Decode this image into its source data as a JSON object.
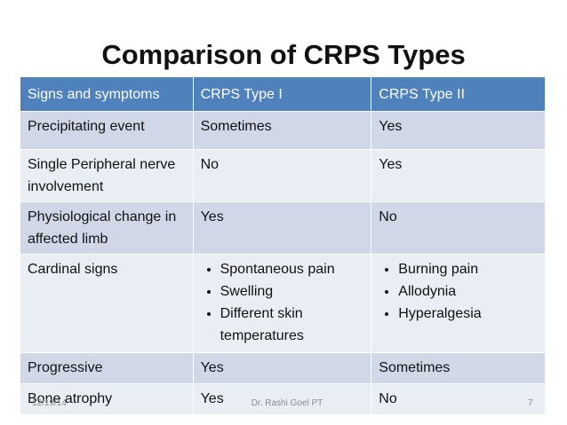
{
  "title": "Comparison of CRPS Types",
  "table": {
    "header": [
      "Signs and symptoms",
      "CRPS Type I",
      "CRPS Type II"
    ],
    "rows": [
      [
        "Precipitating event",
        "Sometimes",
        "Yes"
      ],
      [
        "Single Peripheral nerve involvement",
        "No",
        "Yes"
      ],
      [
        "Physiological change in affected limb",
        "Yes",
        "No"
      ],
      [
        "Cardinal signs",
        [
          "Spontaneous pain",
          "Swelling",
          "Different skin temperatures"
        ],
        [
          "Burning pain",
          "Allodynia",
          "Hyperalgesia"
        ]
      ],
      [
        "Progressive",
        "Yes",
        "Sometimes"
      ],
      [
        "Bone atrophy",
        "Yes",
        "No"
      ]
    ]
  },
  "footer": {
    "date": "12/19/14",
    "author": "Dr. Rashi Goel PT",
    "page": "7"
  }
}
